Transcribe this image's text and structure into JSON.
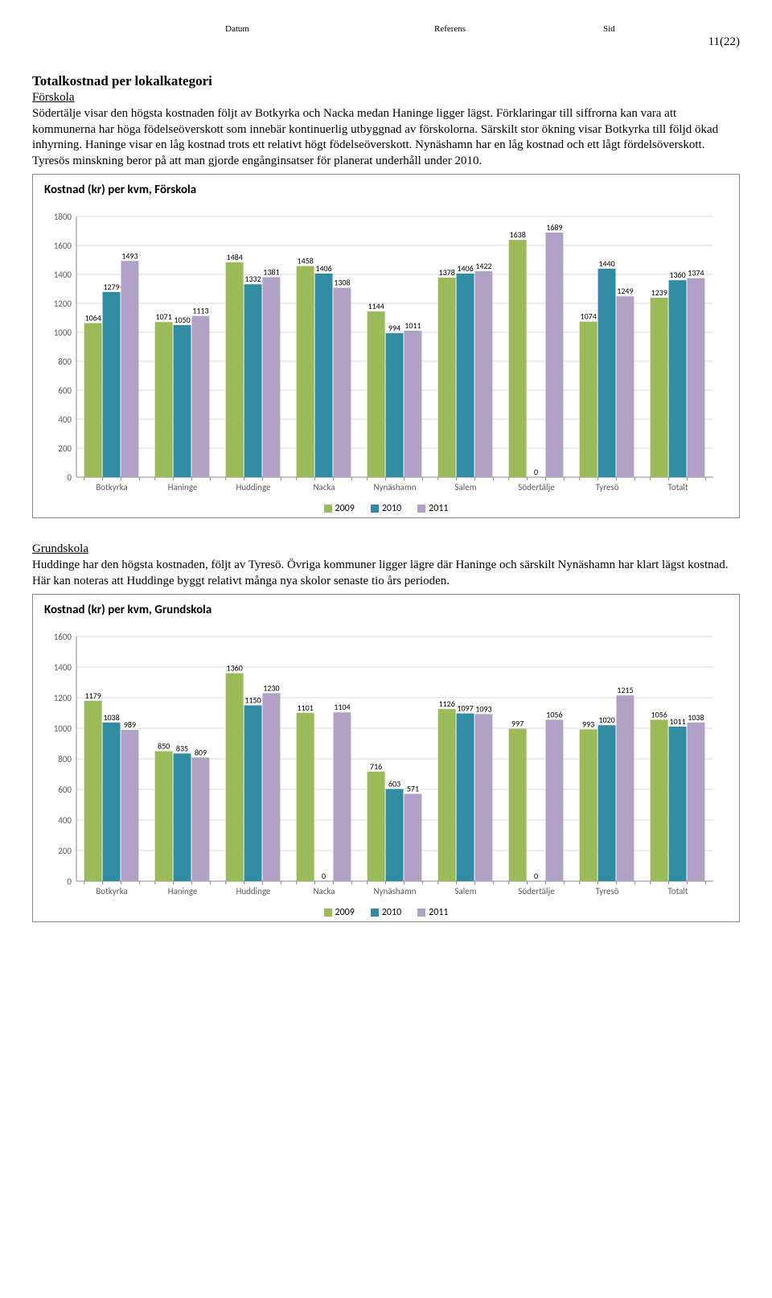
{
  "header": {
    "datum_label": "Datum",
    "referens_label": "Referens",
    "sid_label": "Sid",
    "page_num": "11(22)"
  },
  "section_title": "Totalkostnad per lokalkategori",
  "forskola": {
    "heading": "Förskola",
    "paragraph": "Södertälje visar den högsta kostnaden följt av Botkyrka och Nacka medan Haninge ligger lägst. Förklaringar till siffrorna kan vara att kommunerna har höga födelseöverskott som innebär kontinuerlig utbyggnad av förskolorna. Särskilt stor ökning visar Botkyrka till följd ökad inhyrning. Haninge visar en låg kostnad trots ett relativt högt födelseöverskott. Nynäshamn har en låg kostnad och ett lågt fördelsöverskott. Tyresös minskning beror på att man gjorde engånginsatser för planerat underhåll under 2010."
  },
  "grundskola": {
    "heading": "Grundskola",
    "paragraph": "Huddinge har den högsta kostnaden, följt av Tyresö. Övriga kommuner ligger lägre där Haninge och särskilt Nynäshamn har klart lägst kostnad. Här kan noteras att Huddinge byggt relativt många nya skolor senaste tio års perioden."
  },
  "chart1": {
    "title": "Kostnad (kr) per kvm, Förskola",
    "categories": [
      "Botkyrka",
      "Haninge",
      "Huddinge",
      "Nacka",
      "Nynäshamn",
      "Salem",
      "Södertälje",
      "Tyresö",
      "Totalt"
    ],
    "series_labels": [
      "2009",
      "2010",
      "2011"
    ],
    "series_colors": [
      "#9bbb59",
      "#2f8ca3",
      "#b2a1c7"
    ],
    "values": [
      [
        1064,
        1279,
        1493
      ],
      [
        1071,
        1050,
        1113
      ],
      [
        1484,
        1332,
        1381
      ],
      [
        1458,
        1406,
        1308
      ],
      [
        1144,
        994,
        1011
      ],
      [
        1378,
        1406,
        1422
      ],
      [
        1638,
        0,
        1689
      ],
      [
        1074,
        1440,
        1249
      ],
      [
        1239,
        1360,
        1374
      ]
    ],
    "ylim": [
      0,
      1800
    ],
    "ytick_step": 200,
    "label_fontsize": 10,
    "axis_fontsize": 11,
    "grid_color": "#d9d9d9",
    "axis_color": "#888",
    "background": "#ffffff",
    "bar_width": 0.78
  },
  "chart2": {
    "title": "Kostnad (kr) per kvm, Grundskola",
    "categories": [
      "Botkyrka",
      "Haninge",
      "Huddinge",
      "Nacka",
      "Nynäshamn",
      "Salem",
      "Södertälje",
      "Tyresö",
      "Totalt"
    ],
    "series_labels": [
      "2009",
      "2010",
      "2011"
    ],
    "series_colors": [
      "#9bbb59",
      "#2f8ca3",
      "#b2a1c7"
    ],
    "values": [
      [
        1179,
        1038,
        989
      ],
      [
        850,
        835,
        809
      ],
      [
        1360,
        1150,
        1230
      ],
      [
        1101,
        0,
        1104
      ],
      [
        716,
        603,
        571
      ],
      [
        1126,
        1097,
        1093
      ],
      [
        997,
        0,
        1056
      ],
      [
        993,
        1020,
        1215
      ],
      [
        1056,
        1011,
        1038
      ]
    ],
    "ylim": [
      0,
      1600
    ],
    "ytick_step": 200,
    "label_fontsize": 10,
    "axis_fontsize": 11,
    "grid_color": "#d9d9d9",
    "axis_color": "#888",
    "background": "#ffffff",
    "bar_width": 0.78
  }
}
